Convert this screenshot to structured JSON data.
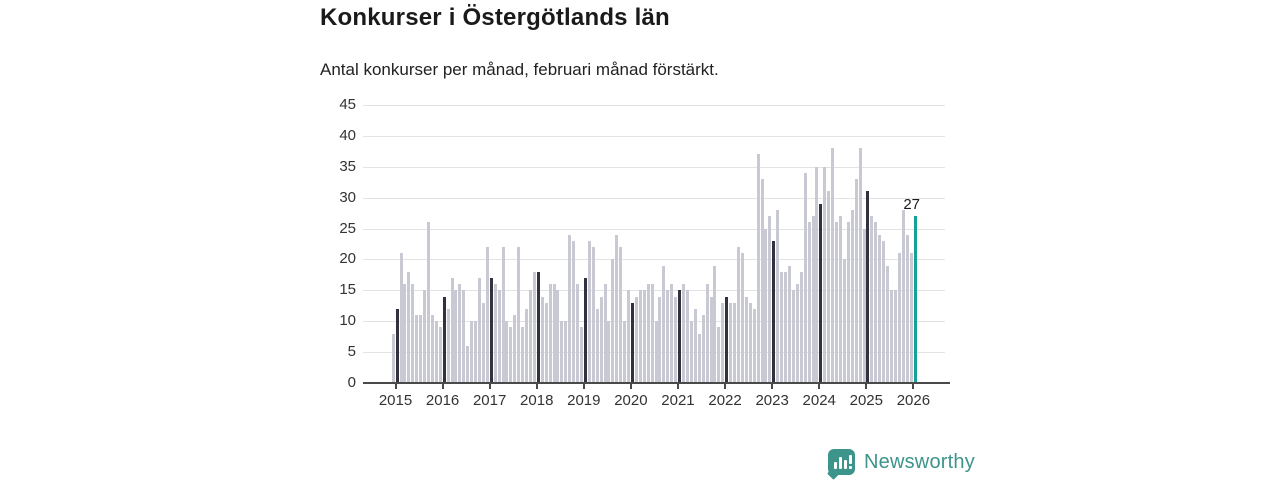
{
  "header": {
    "title": "Konkurser i Östergötlands län",
    "subtitle": "Antal konkurser per månad, februari månad förstärkt."
  },
  "chart_data": {
    "type": "bar",
    "title": "Konkurser i Östergötlands län",
    "subtitle": "Antal konkurser per månad, februari månad förstärkt.",
    "x_start": "2015-01",
    "x_end": "2026-02",
    "frequency": "monthly",
    "categories_years": [
      "2015",
      "2016",
      "2017",
      "2018",
      "2019",
      "2020",
      "2021",
      "2022",
      "2023",
      "2024",
      "2025",
      "2026"
    ],
    "y_ticks": [
      0,
      5,
      10,
      15,
      20,
      25,
      30,
      35,
      40,
      45
    ],
    "ylim": [
      0,
      45
    ],
    "grid": "horizontal",
    "legend": "none",
    "series": [
      {
        "name": "Antal konkurser per månad",
        "values": [
          8,
          12,
          21,
          16,
          18,
          16,
          11,
          11,
          15,
          26,
          11,
          10,
          9,
          14,
          12,
          17,
          15,
          16,
          15,
          6,
          10,
          10,
          17,
          13,
          22,
          17,
          16,
          15,
          22,
          10,
          9,
          11,
          22,
          9,
          12,
          15,
          18,
          18,
          14,
          13,
          16,
          16,
          15,
          10,
          10,
          24,
          23,
          16,
          9,
          17,
          23,
          22,
          12,
          14,
          16,
          10,
          20,
          24,
          22,
          10,
          15,
          13,
          14,
          15,
          15,
          16,
          16,
          10,
          14,
          19,
          15,
          16,
          14,
          15,
          16,
          15,
          10,
          12,
          8,
          11,
          16,
          14,
          19,
          9,
          13,
          14,
          13,
          13,
          22,
          21,
          14,
          13,
          12,
          37,
          33,
          25,
          27,
          23,
          28,
          18,
          18,
          19,
          15,
          16,
          18,
          34,
          26,
          27,
          35,
          29,
          35,
          31,
          38,
          26,
          27,
          20,
          26,
          28,
          33,
          38,
          25,
          31,
          27,
          26,
          24,
          23,
          19,
          15,
          15,
          21,
          28,
          24,
          21,
          27
        ]
      }
    ],
    "february_values": {
      "2015": 12,
      "2016": 14,
      "2017": 17,
      "2018": 18,
      "2019": 17,
      "2020": 13,
      "2021": 15,
      "2022": 14,
      "2023": 23,
      "2024": 29,
      "2025": 31,
      "2026": 27
    },
    "highlight_rule": "february bars dark, latest bar (feb 2026) teal",
    "last_value_label": "27",
    "colors": {
      "default_bar": "#c9c9d3",
      "february_bar": "#32323f",
      "latest_bar": "#12a297",
      "gridline": "#e3e3e3",
      "axis": "#4a4a4a",
      "text": "#333333"
    }
  },
  "annotation": {
    "latest_value": "27"
  },
  "footer": {
    "brand": "Newsworthy",
    "logo_icon": "bar-chart-badge-icon",
    "brand_color": "#3d948b"
  }
}
